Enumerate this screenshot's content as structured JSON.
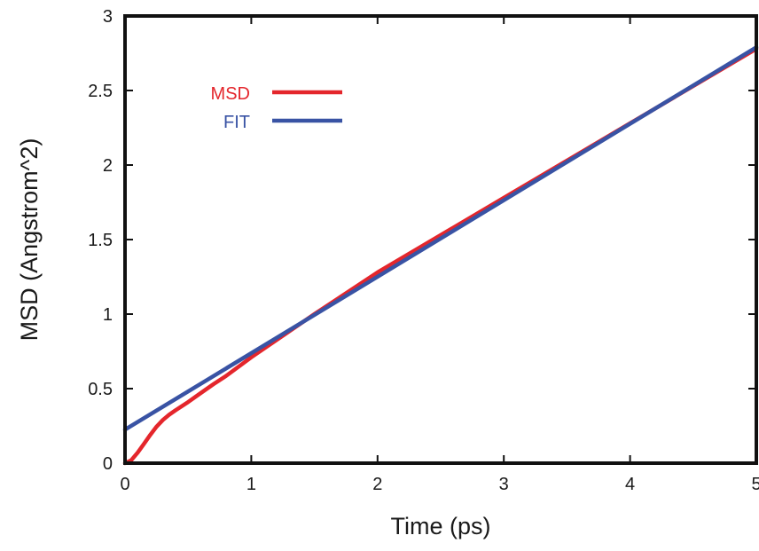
{
  "chart_data": {
    "type": "line",
    "title": "",
    "xlabel": "Time (ps)",
    "ylabel": "MSD (Angstrom^2)",
    "xlim": [
      0,
      5
    ],
    "ylim": [
      0,
      3
    ],
    "xticks": [
      0,
      1,
      2,
      3,
      4,
      5
    ],
    "yticks": [
      0,
      0.5,
      1,
      1.5,
      2,
      2.5,
      3
    ],
    "xtick_labels": [
      "0",
      "1",
      "2",
      "3",
      "4",
      "5"
    ],
    "ytick_labels": [
      "0",
      "0.5",
      "1",
      "1.5",
      "2",
      "2.5",
      "3"
    ],
    "grid": false,
    "legend_position": "top-left",
    "series": [
      {
        "name": "MSD",
        "color": "#e4262c",
        "x": [
          0.0,
          0.05,
          0.1,
          0.15,
          0.2,
          0.25,
          0.3,
          0.35,
          0.4,
          0.5,
          0.6,
          0.7,
          0.8,
          1.0,
          1.5,
          2.0,
          3.0,
          4.0,
          5.0
        ],
        "y": [
          0.0,
          0.02,
          0.07,
          0.13,
          0.19,
          0.245,
          0.29,
          0.325,
          0.355,
          0.41,
          0.47,
          0.53,
          0.585,
          0.71,
          1.0,
          1.28,
          1.78,
          2.28,
          2.78
        ]
      },
      {
        "name": "FIT",
        "color": "#3953a4",
        "x": [
          0.0,
          5.0
        ],
        "y": [
          0.225,
          2.79
        ]
      }
    ]
  }
}
